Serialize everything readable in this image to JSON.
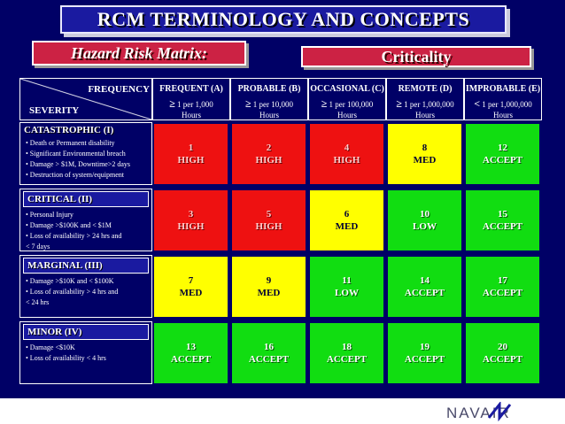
{
  "title": "RCM TERMINOLOGY AND CONCEPTS",
  "subtitle_left": "Hazard Risk Matrix:",
  "subtitle_right": "Criticality",
  "header": {
    "frequency": "FREQUENCY",
    "severity": "SEVERITY"
  },
  "columns": [
    {
      "name": "FREQUENT (A)",
      "symbol": "≥",
      "rate": "1 per 1,000",
      "unit": "Hours"
    },
    {
      "name": "PROBABLE (B)",
      "symbol": "≥",
      "rate": "1 per 10,000",
      "unit": "Hours"
    },
    {
      "name": "OCCASIONAL (C)",
      "symbol": "≥",
      "rate": "1 per 100,000",
      "unit": "Hours"
    },
    {
      "name": "REMOTE (D)",
      "symbol": "≥",
      "rate": "1 per 1,000,000",
      "unit": "Hours"
    },
    {
      "name": "IMPROBABLE (E)",
      "symbol": "<",
      "rate": "1 per 1,000,000",
      "unit": "Hours"
    }
  ],
  "rows": [
    {
      "title": "CATASTROPHIC (I)",
      "desc": [
        "• Death or Permanent disability",
        "• Significant Environmental breach",
        "• Damage > $1M, Downtime>2 days",
        "• Destruction of system/equipment"
      ]
    },
    {
      "title": "CRITICAL (II)",
      "desc": [
        "• Personal Injury",
        "• Damage >$100K and < $1M",
        "• Loss of availability > 24 hrs and",
        "  < 7 days"
      ]
    },
    {
      "title": "MARGINAL (III)",
      "desc": [
        "• Damage >$10K and < $100K",
        "• Loss of availability > 4 hrs and",
        "  < 24 hrs"
      ]
    },
    {
      "title": "MINOR (IV)",
      "desc": [
        "• Damage <$10K",
        "• Loss of availability < 4 hrs"
      ]
    }
  ],
  "cells": [
    [
      {
        "n": "1",
        "l": "HIGH",
        "c": "red"
      },
      {
        "n": "2",
        "l": "HIGH",
        "c": "red"
      },
      {
        "n": "4",
        "l": "HIGH",
        "c": "red"
      },
      {
        "n": "8",
        "l": "MED",
        "c": "yellow"
      },
      {
        "n": "12",
        "l": "ACCEPT",
        "c": "green"
      }
    ],
    [
      {
        "n": "3",
        "l": "HIGH",
        "c": "red"
      },
      {
        "n": "5",
        "l": "HIGH",
        "c": "red"
      },
      {
        "n": "6",
        "l": "MED",
        "c": "yellow"
      },
      {
        "n": "10",
        "l": "LOW",
        "c": "green"
      },
      {
        "n": "15",
        "l": "ACCEPT",
        "c": "green"
      }
    ],
    [
      {
        "n": "7",
        "l": "MED",
        "c": "yellow"
      },
      {
        "n": "9",
        "l": "MED",
        "c": "yellow"
      },
      {
        "n": "11",
        "l": "LOW",
        "c": "green"
      },
      {
        "n": "14",
        "l": "ACCEPT",
        "c": "green"
      },
      {
        "n": "17",
        "l": "ACCEPT",
        "c": "green"
      }
    ],
    [
      {
        "n": "13",
        "l": "ACCEPT",
        "c": "green"
      },
      {
        "n": "16",
        "l": "ACCEPT",
        "c": "green"
      },
      {
        "n": "18",
        "l": "ACCEPT",
        "c": "green"
      },
      {
        "n": "19",
        "l": "ACCEPT",
        "c": "green"
      },
      {
        "n": "20",
        "l": "ACCEPT",
        "c": "green"
      }
    ]
  ],
  "colors": {
    "red": "#ee1111",
    "yellow": "#ffff00",
    "green": "#11dd11",
    "background": "#000066"
  },
  "logo": "NAVAIR"
}
